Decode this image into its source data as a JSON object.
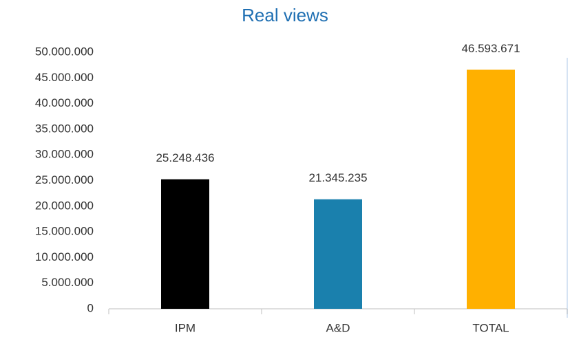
{
  "chart_data": {
    "type": "bar",
    "title": "Real views",
    "categories": [
      "IPM",
      "A&D",
      "TOTAL"
    ],
    "values": [
      25248436,
      21345235,
      46593671
    ],
    "value_labels": [
      "25.248.436",
      "21.345.235",
      "46.593.671"
    ],
    "colors": [
      "#000000",
      "#1a80ad",
      "#ffb000"
    ],
    "ylim": [
      0,
      50000000
    ],
    "yticks": [
      0,
      {
        "value": 5000000,
        "label": "5.000.000"
      },
      {
        "value": 10000000,
        "label": "10.000.000"
      },
      {
        "value": 15000000,
        "label": "15.000.000"
      },
      {
        "value": 20000000,
        "label": "20.000.000"
      },
      {
        "value": 25000000,
        "label": "25.000.000"
      },
      {
        "value": 30000000,
        "label": "30.000.000"
      },
      {
        "value": 35000000,
        "label": "35.000.000"
      },
      {
        "value": 40000000,
        "label": "40.000.000"
      },
      {
        "value": 45000000,
        "label": "45.000.000"
      },
      {
        "value": 50000000,
        "label": "50.000.000"
      }
    ],
    "grid": false
  }
}
